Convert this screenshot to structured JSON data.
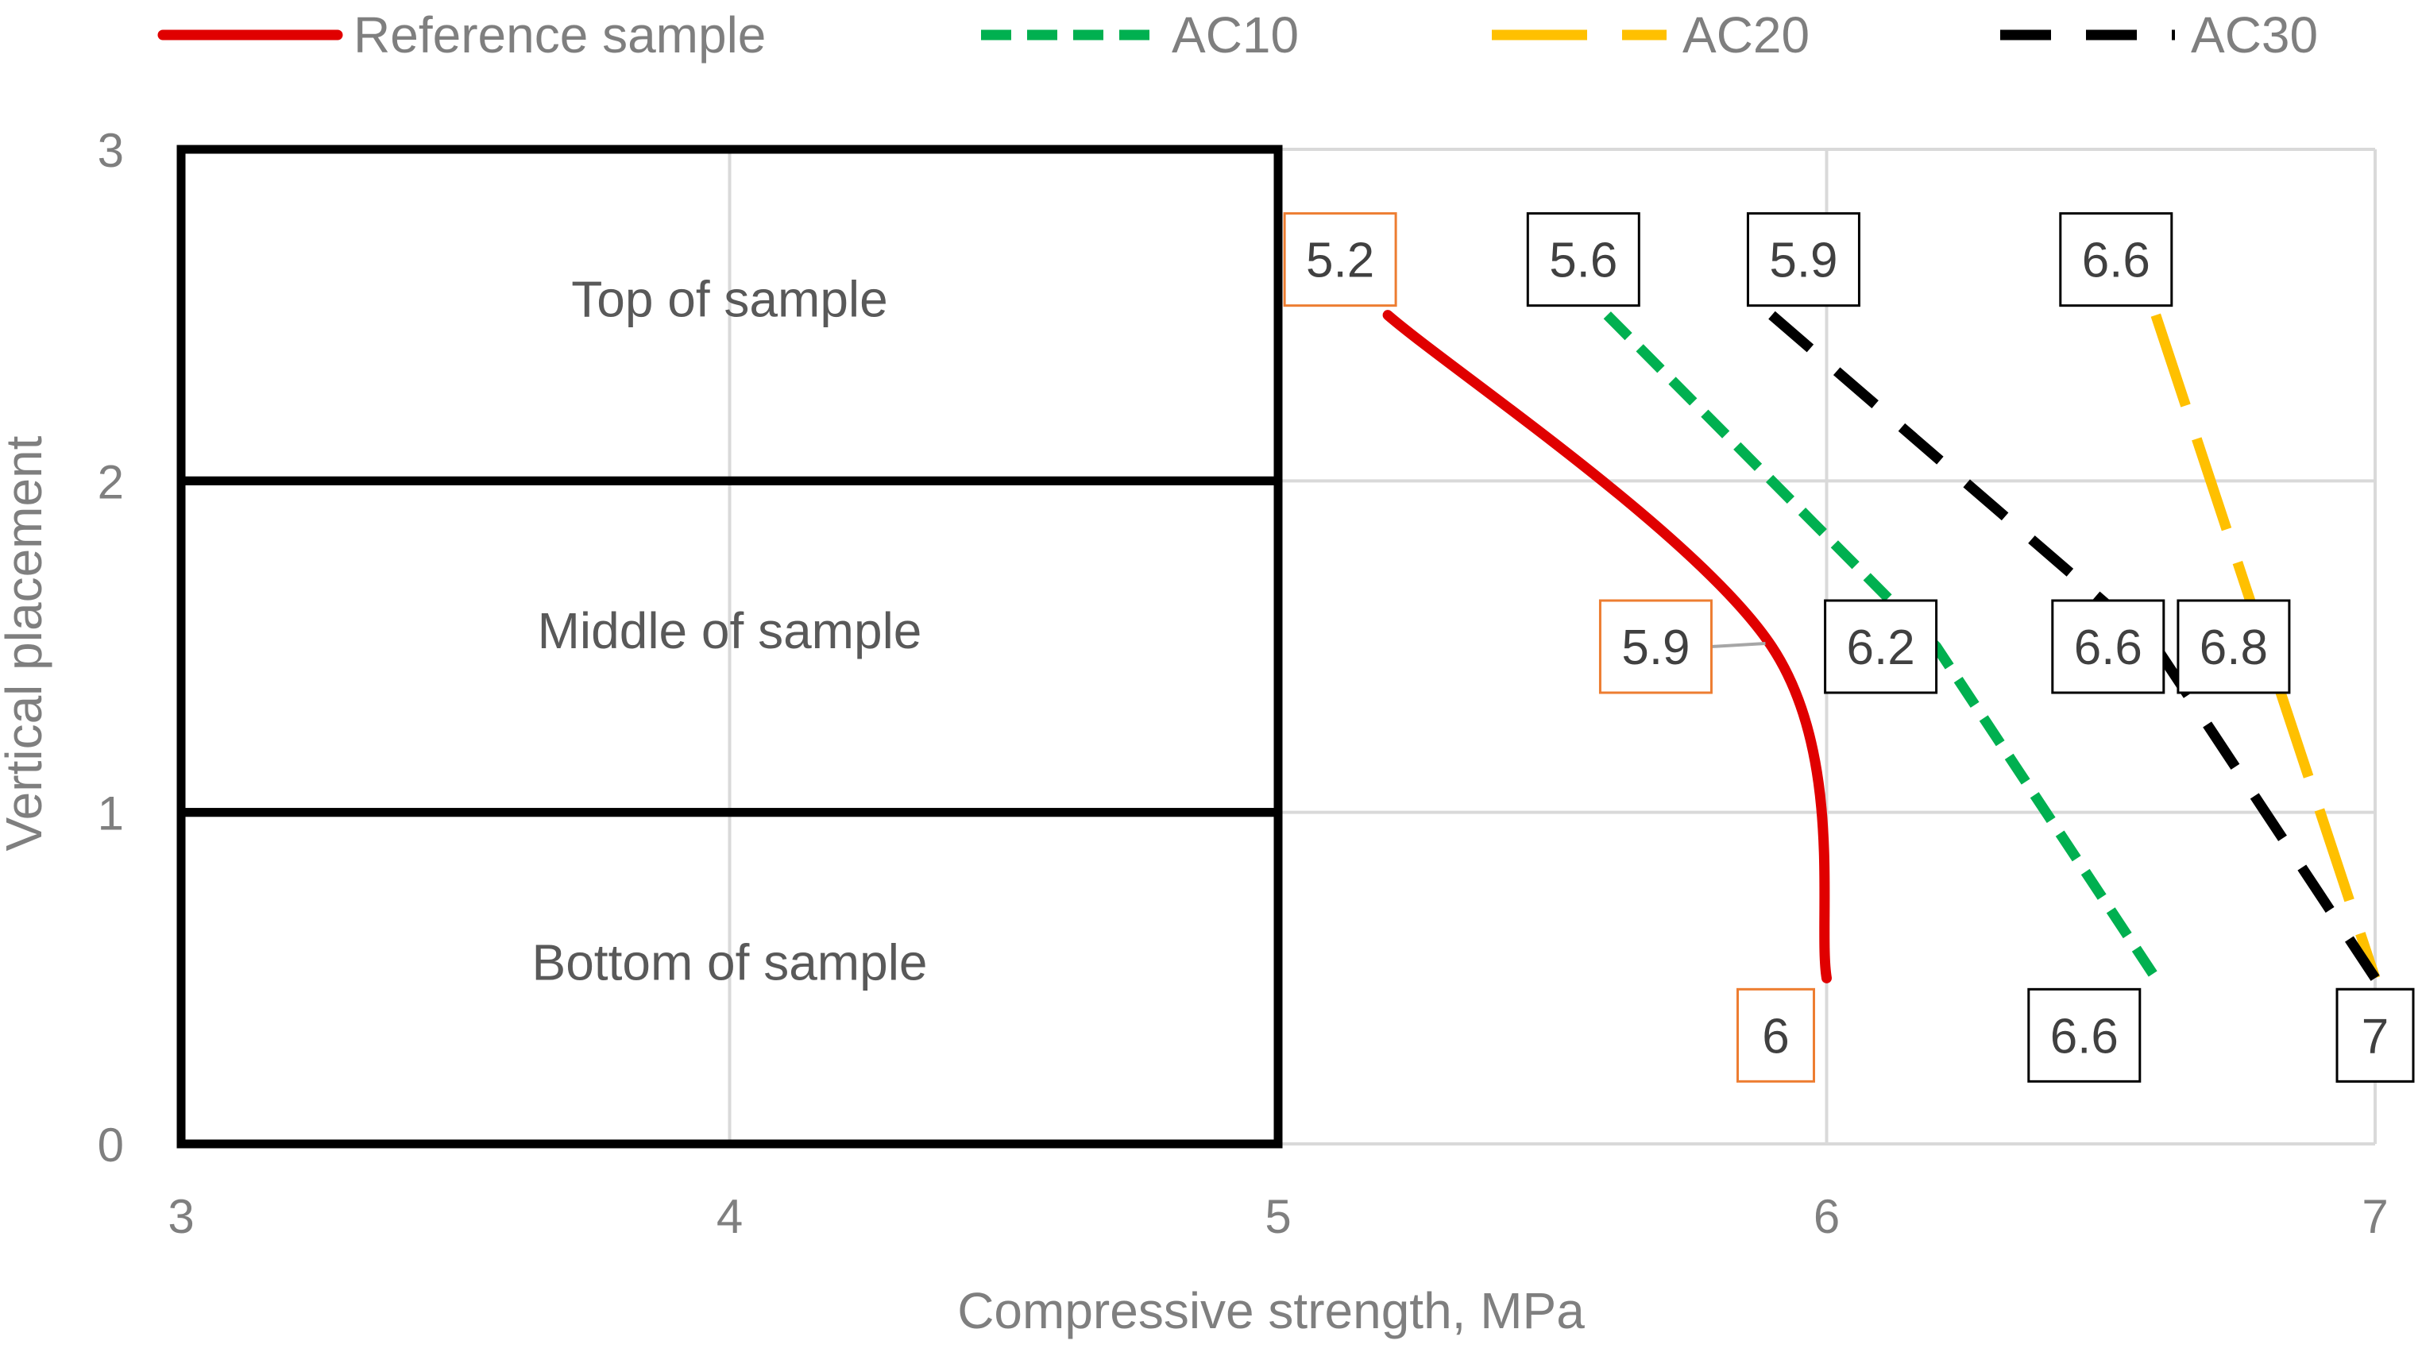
{
  "chart_data": {
    "type": "line",
    "title": "",
    "xlabel": "Compressive strength, MPa",
    "ylabel": "Vertical placement",
    "xlim": [
      3,
      7
    ],
    "ylim": [
      0,
      3
    ],
    "x_ticks": [
      "3",
      "4",
      "5",
      "6",
      "7"
    ],
    "y_ticks": [
      "0",
      "1",
      "2",
      "3"
    ],
    "grid": true,
    "legend_position": "top",
    "zones": [
      {
        "label": "Top of sample",
        "y_from": 2,
        "y_to": 3
      },
      {
        "label": "Middle of sample",
        "y_from": 1,
        "y_to": 2
      },
      {
        "label": "Bottom of sample",
        "y_from": 0,
        "y_to": 1
      }
    ],
    "series": [
      {
        "name": "Reference sample",
        "color": "#E00000",
        "style": "solid",
        "smooth": true,
        "points": [
          {
            "x": 5.2,
            "y": 2.5
          },
          {
            "x": 5.9,
            "y": 1.5
          },
          {
            "x": 6.0,
            "y": 0.5
          }
        ],
        "labels": [
          "5.2",
          "5.9",
          "6"
        ],
        "label_border": "#ED7D31"
      },
      {
        "name": "AC10",
        "color": "#00B050",
        "style": "dotted",
        "smooth": false,
        "points": [
          {
            "x": 5.6,
            "y": 2.5
          },
          {
            "x": 6.2,
            "y": 1.5
          },
          {
            "x": 6.6,
            "y": 0.5
          }
        ],
        "labels": [
          "5.6",
          "6.2",
          "6.6"
        ],
        "label_border": "#000000"
      },
      {
        "name": "AC20",
        "color": "#FFC000",
        "style": "longdash",
        "smooth": false,
        "points": [
          {
            "x": 6.6,
            "y": 2.5
          },
          {
            "x": 6.8,
            "y": 1.5
          },
          {
            "x": 7.0,
            "y": 0.5
          }
        ],
        "labels": [
          "6.6",
          "6.8",
          "7"
        ],
        "label_border": "#000000"
      },
      {
        "name": "AC30",
        "color": "#000000",
        "style": "dash",
        "smooth": false,
        "points": [
          {
            "x": 5.9,
            "y": 2.5
          },
          {
            "x": 6.6,
            "y": 1.5
          },
          {
            "x": 7.0,
            "y": 0.5
          }
        ],
        "labels": [
          "5.9",
          "6.6",
          "7"
        ],
        "label_border": "#000000"
      }
    ]
  }
}
